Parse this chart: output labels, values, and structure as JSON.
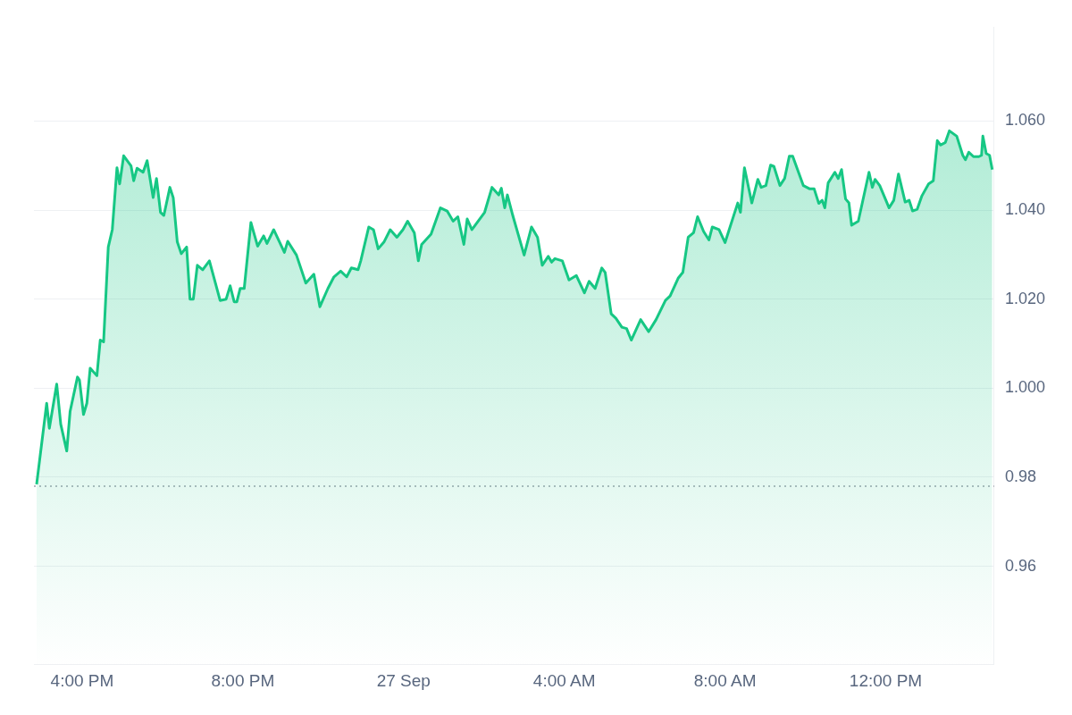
{
  "chart_data": {
    "type": "area",
    "xlim": [
      "--09-26T14:48",
      "--09-27T14:42"
    ],
    "xticks": [
      {
        "value": "--09-26T16:00",
        "label": "4:00 PM"
      },
      {
        "value": "--09-26T20:00",
        "label": "8:00 PM"
      },
      {
        "value": "--09-27T00:00",
        "label": "27 Sep"
      },
      {
        "value": "--09-27T04:00",
        "label": "4:00 AM"
      },
      {
        "value": "--09-27T08:00",
        "label": "8:00 AM"
      },
      {
        "value": "--09-27T12:00",
        "label": "12:00 PM"
      }
    ],
    "ylim": [
      0.938,
      1.081
    ],
    "yticks": [
      0.96,
      0.98,
      {
        "value": 1,
        "label": "1.000"
      },
      {
        "value": 1.02,
        "label": "1.020"
      },
      {
        "value": 1.04,
        "label": "1.040"
      },
      {
        "value": 1.06,
        "label": "1.060"
      }
    ],
    "grid": "y",
    "legend": false,
    "marker": "none",
    "ref_lines": [
      {
        "axis": "y",
        "value": 0.978,
        "color": "#9ea3ad",
        "line_style": "dotted"
      }
    ],
    "series": [
      {
        "color": "#16c784",
        "x": [
          "--09-26T14:52",
          "--09-26T15:07",
          "--09-26T15:11",
          "--09-26T15:22",
          "--09-26T15:28",
          "--09-26T15:37",
          "--09-26T15:42",
          "--09-26T15:53",
          "--09-26T15:56",
          "--09-26T16:02",
          "--09-26T16:07",
          "--09-26T16:12",
          "--09-26T16:22",
          "--09-26T16:27",
          "--09-26T16:32",
          "--09-26T16:39",
          "--09-26T16:45",
          "--09-26T16:52",
          "--09-26T16:56",
          "--09-26T17:02",
          "--09-26T17:13",
          "--09-26T17:17",
          "--09-26T17:22",
          "--09-26T17:31",
          "--09-26T17:37",
          "--09-26T17:46",
          "--09-26T17:51",
          "--09-26T17:57",
          "--09-26T18:02",
          "--09-26T18:11",
          "--09-26T18:16",
          "--09-26T18:22",
          "--09-26T18:28",
          "--09-26T18:36",
          "--09-26T18:41",
          "--09-26T18:46",
          "--09-26T18:52",
          "--09-26T19:00",
          "--09-26T19:10",
          "--09-26T19:26",
          "--09-26T19:35",
          "--09-26T19:41",
          "--09-26T19:47",
          "--09-26T19:51",
          "--09-26T19:56",
          "--09-26T20:02",
          "--09-26T20:12",
          "--09-26T20:22",
          "--09-26T20:31",
          "--09-26T20:36",
          "--09-26T20:46",
          "--09-26T21:02",
          "--09-26T21:07",
          "--09-26T21:20",
          "--09-26T21:34",
          "--09-26T21:46",
          "--09-26T21:55",
          "--09-26T22:07",
          "--09-26T22:16",
          "--09-26T22:26",
          "--09-26T22:35",
          "--09-26T22:42",
          "--09-26T22:52",
          "--09-26T22:56",
          "--09-26T23:08",
          "--09-26T23:15",
          "--09-26T23:22",
          "--09-26T23:31",
          "--09-26T23:40",
          "--09-26T23:50",
          "--09-26T23:59",
          "--09-27T00:06",
          "--09-27T00:16",
          "--09-27T00:22",
          "--09-27T00:27",
          "--09-27T00:41",
          "--09-27T00:55",
          "--09-27T01:05",
          "--09-27T01:14",
          "--09-27T01:21",
          "--09-27T01:30",
          "--09-27T01:35",
          "--09-27T01:42",
          "--09-27T02:01",
          "--09-27T02:12",
          "--09-27T02:22",
          "--09-27T02:26",
          "--09-27T02:31",
          "--09-27T02:35",
          "--09-27T02:43",
          "--09-27T03:00",
          "--09-27T03:11",
          "--09-27T03:20",
          "--09-27T03:27",
          "--09-27T03:36",
          "--09-27T03:41",
          "--09-27T03:46",
          "--09-27T03:57",
          "--09-27T04:07",
          "--09-27T04:18",
          "--09-27T04:30",
          "--09-27T04:37",
          "--09-27T04:46",
          "--09-27T04:56",
          "--09-27T05:01",
          "--09-27T05:10",
          "--09-27T05:17",
          "--09-27T05:26",
          "--09-27T05:33",
          "--09-27T05:40",
          "--09-27T05:54",
          "--09-27T06:06",
          "--09-27T06:17",
          "--09-27T06:31",
          "--09-27T06:38",
          "--09-27T06:50",
          "--09-27T06:57",
          "--09-27T07:05",
          "--09-27T07:13",
          "--09-27T07:19",
          "--09-27T07:28",
          "--09-27T07:36",
          "--09-27T07:41",
          "--09-27T07:51",
          "--09-27T08:00",
          "--09-27T08:19",
          "--09-27T08:23",
          "--09-27T08:29",
          "--09-27T08:40",
          "--09-27T08:49",
          "--09-27T08:54",
          "--09-27T09:01",
          "--09-27T09:08",
          "--09-27T09:13",
          "--09-27T09:22",
          "--09-27T09:29",
          "--09-27T09:36",
          "--09-27T09:41",
          "--09-27T09:57",
          "--09-27T10:06",
          "--09-27T10:13",
          "--09-27T10:20",
          "--09-27T10:25",
          "--09-27T10:29",
          "--09-27T10:34",
          "--09-27T10:44",
          "--09-27T10:49",
          "--09-27T10:54",
          "--09-27T11:00",
          "--09-27T11:05",
          "--09-27T11:09",
          "--09-27T11:19",
          "--09-27T11:35",
          "--09-27T11:40",
          "--09-27T11:44",
          "--09-27T11:51",
          "--09-27T12:05",
          "--09-27T12:12",
          "--09-27T12:19",
          "--09-27T12:29",
          "--09-27T12:35",
          "--09-27T12:40",
          "--09-27T12:47",
          "--09-27T12:54",
          "--09-27T13:04",
          "--09-27T13:11",
          "--09-27T13:17",
          "--09-27T13:22",
          "--09-27T13:29",
          "--09-27T13:35",
          "--09-27T13:46",
          "--09-27T13:55",
          "--09-27T13:59",
          "--09-27T14:04",
          "--09-27T14:11",
          "--09-27T14:19",
          "--09-27T14:23",
          "--09-27T14:25",
          "--09-27T14:30",
          "--09-27T14:35",
          "--09-27T14:39"
        ],
        "values": [
          0.9784,
          0.9966,
          0.991,
          1.0009,
          0.9919,
          0.9859,
          0.9948,
          1.0025,
          1.0018,
          0.9941,
          0.9966,
          1.0045,
          1.0028,
          1.0108,
          1.0104,
          1.0317,
          1.0356,
          1.0495,
          1.0459,
          1.0522,
          1.0499,
          1.0466,
          1.0494,
          1.0485,
          1.0511,
          1.0428,
          1.0471,
          1.0395,
          1.0388,
          1.0451,
          1.0428,
          1.0329,
          1.0302,
          1.0317,
          1.02,
          1.02,
          1.0276,
          1.0266,
          1.0286,
          1.0197,
          1.02,
          1.023,
          1.0194,
          1.0194,
          1.0224,
          1.0224,
          1.0372,
          1.0319,
          1.0342,
          1.0325,
          1.0356,
          1.0305,
          1.033,
          1.0299,
          1.0236,
          1.0256,
          1.0183,
          1.0224,
          1.025,
          1.0263,
          1.025,
          1.027,
          1.0266,
          1.0286,
          1.0362,
          1.0356,
          1.0313,
          1.0329,
          1.0356,
          1.0339,
          1.0356,
          1.0375,
          1.0349,
          1.0286,
          1.0323,
          1.0346,
          1.0405,
          1.0398,
          1.0375,
          1.0385,
          1.0323,
          1.038,
          1.0356,
          1.0395,
          1.0451,
          1.0434,
          1.0449,
          1.0405,
          1.0434,
          1.0388,
          1.0299,
          1.0362,
          1.0339,
          1.0276,
          1.0296,
          1.0283,
          1.0291,
          1.0286,
          1.0243,
          1.0253,
          1.0214,
          1.024,
          1.0224,
          1.027,
          1.026,
          1.0167,
          1.0157,
          1.0137,
          1.0134,
          1.0108,
          1.0154,
          1.0127,
          1.0154,
          1.0197,
          1.0207,
          1.0247,
          1.026,
          1.0339,
          1.0349,
          1.0385,
          1.0352,
          1.0333,
          1.0362,
          1.0356,
          1.0327,
          1.0416,
          1.0395,
          1.0495,
          1.0416,
          1.0469,
          1.0451,
          1.0455,
          1.0501,
          1.0498,
          1.0455,
          1.0471,
          1.0521,
          1.0521,
          1.0455,
          1.0448,
          1.0448,
          1.0415,
          1.0422,
          1.0405,
          1.0461,
          1.0485,
          1.0471,
          1.0491,
          1.0425,
          1.0416,
          1.0366,
          1.0375,
          1.0485,
          1.0451,
          1.0469,
          1.0455,
          1.0405,
          1.0422,
          1.0481,
          1.0418,
          1.0422,
          1.0398,
          1.0402,
          1.0432,
          1.0459,
          1.0466,
          1.0556,
          1.0546,
          1.0552,
          1.0578,
          1.0566,
          1.0523,
          1.0513,
          1.053,
          1.052,
          1.052,
          1.0523,
          1.0566,
          1.0527,
          1.0523,
          1.0491
        ]
      }
    ]
  }
}
